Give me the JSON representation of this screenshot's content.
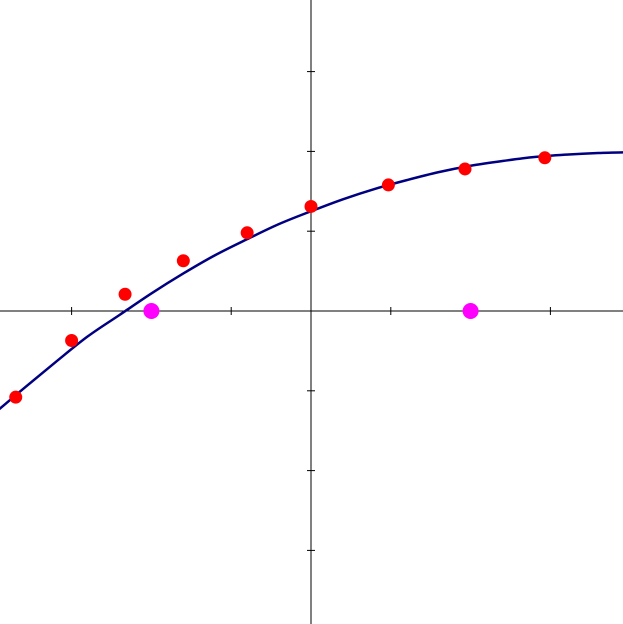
{
  "chart_data": {
    "type": "scatter",
    "title": "",
    "xlabel": "",
    "ylabel": "",
    "xlim": [
      -3.9,
      3.9
    ],
    "ylim": [
      -3.9,
      3.9
    ],
    "x_ticks": [
      -3,
      -2,
      -1,
      1,
      2,
      3
    ],
    "y_ticks": [
      -3,
      -2,
      -1,
      1,
      2,
      3
    ],
    "grid": false,
    "legend": "none",
    "curve": {
      "color": "#000080",
      "x": [
        -4.0,
        -3.6,
        -3.2,
        -2.8,
        -2.4,
        -2.0,
        -1.6,
        -1.2,
        -0.8,
        -0.4,
        0.0,
        0.4,
        0.8,
        1.2,
        1.6,
        2.0,
        2.4,
        2.8,
        3.2,
        3.6,
        4.0
      ],
      "y": [
        -1.31,
        -0.97,
        -0.64,
        -0.32,
        -0.05,
        0.22,
        0.47,
        0.7,
        0.9,
        1.09,
        1.25,
        1.4,
        1.53,
        1.64,
        1.74,
        1.82,
        1.88,
        1.93,
        1.96,
        1.98,
        1.99
      ]
    },
    "series": [
      {
        "color": "#ff0000",
        "x": [
          -3.7,
          -3.0,
          -2.33,
          -1.6,
          -0.8,
          0.0,
          0.97,
          1.93,
          2.93
        ],
        "y": [
          -1.08,
          -0.37,
          0.21,
          0.63,
          0.98,
          1.31,
          1.58,
          1.78,
          1.92
        ]
      },
      {
        "color": "#ff00ff",
        "x": [
          -2.0,
          2.0
        ],
        "y": [
          0.0,
          0.0
        ]
      }
    ]
  }
}
